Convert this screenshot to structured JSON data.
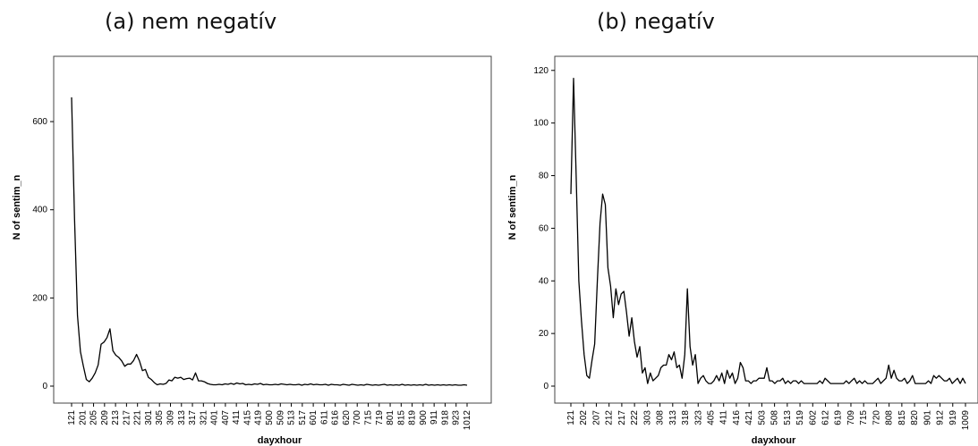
{
  "panels": {
    "a": {
      "label": "(a) nem negatív"
    },
    "b": {
      "label": "(b) negatív"
    }
  },
  "colors": {
    "line": "#000000",
    "frame": "#444444",
    "background": "#ffffff"
  },
  "chart_data": [
    {
      "type": "line",
      "title": "(a) nem negatív",
      "xlabel": "dayxhour",
      "ylabel": "N of sentim_n",
      "ylim": [
        0,
        740
      ],
      "yticks": [
        0,
        200,
        400,
        600
      ],
      "x_tick_labels": [
        "121",
        "201",
        "205",
        "209",
        "213",
        "217",
        "221",
        "301",
        "305",
        "309",
        "313",
        "317",
        "321",
        "401",
        "407",
        "411",
        "415",
        "419",
        "500",
        "509",
        "513",
        "517",
        "601",
        "611",
        "616",
        "620",
        "700",
        "715",
        "719",
        "801",
        "815",
        "819",
        "900",
        "911",
        "918",
        "923",
        "1012"
      ],
      "grid": false,
      "legend": "none",
      "y": [
        655,
        380,
        160,
        78,
        45,
        15,
        10,
        18,
        30,
        48,
        95,
        100,
        110,
        130,
        80,
        70,
        65,
        57,
        45,
        50,
        50,
        58,
        72,
        57,
        35,
        38,
        20,
        15,
        8,
        3,
        5,
        4,
        6,
        14,
        12,
        20,
        18,
        20,
        15,
        17,
        18,
        14,
        30,
        12,
        12,
        10,
        6,
        4,
        3,
        3,
        4,
        3,
        5,
        4,
        6,
        4,
        7,
        5,
        6,
        3,
        4,
        3,
        5,
        4,
        6,
        3,
        4,
        3,
        3,
        4,
        3,
        5,
        4,
        3,
        4,
        3,
        3,
        4,
        2,
        4,
        3,
        5,
        3,
        4,
        3,
        3,
        4,
        2,
        4,
        3,
        3,
        2,
        4,
        3,
        2,
        4,
        3,
        2,
        3,
        2,
        4,
        3,
        2,
        3,
        2,
        3,
        4,
        2,
        3,
        2,
        3,
        2,
        4,
        2,
        3,
        2,
        3,
        2,
        3,
        2,
        4,
        2,
        3,
        2,
        3,
        2,
        3,
        2,
        3,
        2,
        3,
        2,
        2,
        3,
        2
      ]
    },
    {
      "type": "line",
      "title": "(b) negatív",
      "xlabel": "dayxhour",
      "ylabel": "N of sentim_n",
      "ylim": [
        0,
        124
      ],
      "yticks": [
        0,
        20,
        40,
        60,
        80,
        100,
        120
      ],
      "x_tick_labels": [
        "121",
        "202",
        "207",
        "212",
        "217",
        "222",
        "303",
        "308",
        "313",
        "318",
        "323",
        "405",
        "411",
        "416",
        "421",
        "503",
        "508",
        "513",
        "519",
        "602",
        "612",
        "619",
        "709",
        "715",
        "720",
        "808",
        "815",
        "820",
        "901",
        "912",
        "919",
        "1009"
      ],
      "grid": false,
      "legend": "none",
      "y": [
        73,
        117,
        80,
        40,
        25,
        12,
        4,
        3,
        10,
        16,
        40,
        62,
        73,
        69,
        45,
        38,
        26,
        37,
        31,
        35,
        36,
        28,
        19,
        26,
        17,
        11,
        15,
        5,
        7,
        1,
        5,
        2,
        3,
        4,
        7,
        8,
        8,
        12,
        10,
        13,
        7,
        8,
        3,
        12,
        37,
        15,
        8,
        12,
        1,
        3,
        4,
        2,
        1,
        1,
        2,
        4,
        2,
        5,
        1,
        6,
        3,
        5,
        1,
        3,
        9,
        7,
        2,
        2,
        1,
        2,
        2,
        3,
        3,
        3,
        7,
        2,
        2,
        1,
        2,
        2,
        3,
        1,
        2,
        1,
        2,
        2,
        1,
        2,
        1,
        1,
        1,
        1,
        1,
        1,
        2,
        1,
        3,
        2,
        1,
        1,
        1,
        1,
        1,
        1,
        2,
        1,
        2,
        3,
        1,
        2,
        1,
        2,
        1,
        1,
        1,
        2,
        3,
        1,
        2,
        3,
        8,
        3,
        6,
        3,
        2,
        2,
        3,
        1,
        2,
        4,
        1,
        1,
        1,
        1,
        1,
        2,
        1,
        4,
        3,
        4,
        3,
        2,
        2,
        3,
        1,
        2,
        3,
        1,
        3,
        1
      ]
    }
  ]
}
